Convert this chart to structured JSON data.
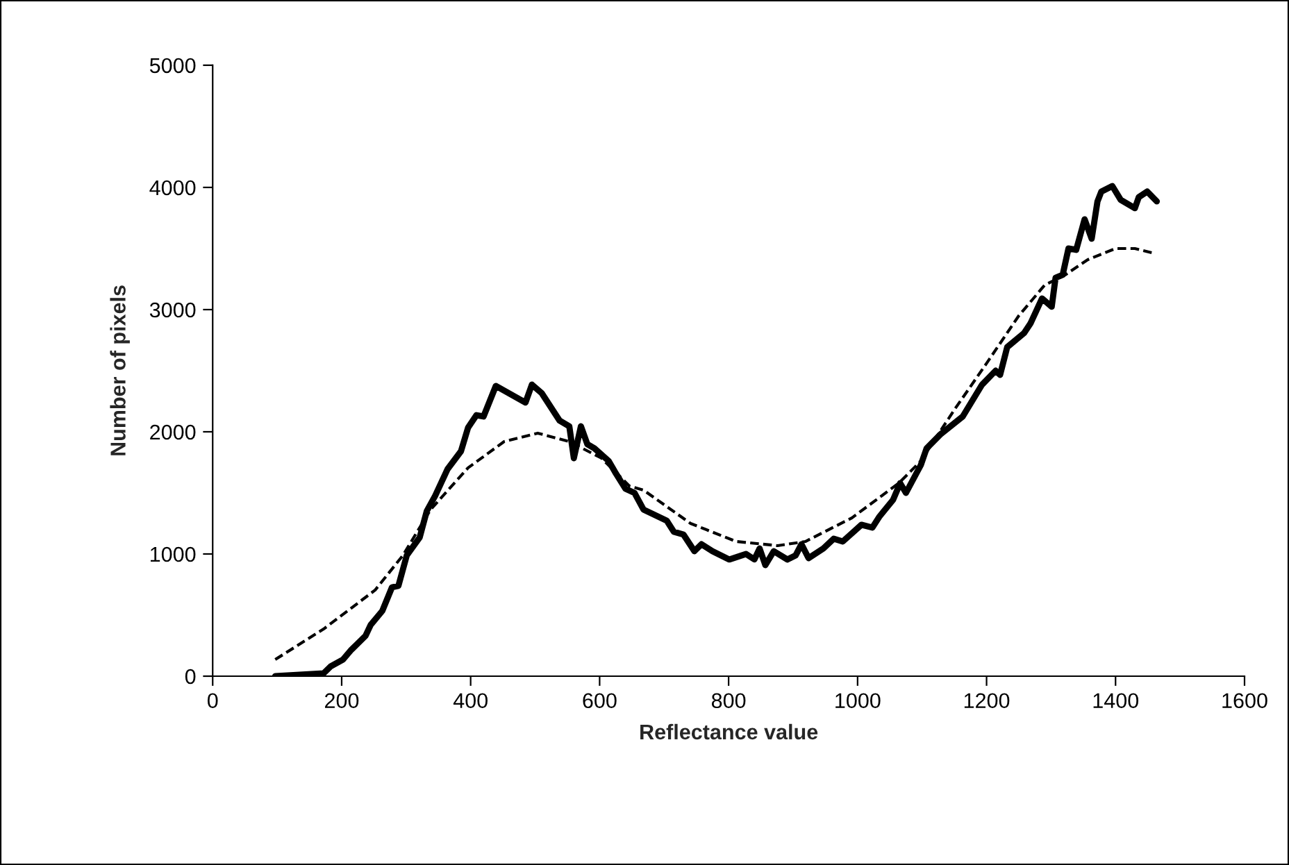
{
  "chart_data": {
    "type": "line",
    "xlabel": "Reflectance value",
    "ylabel": "Number of pixels",
    "xlim": [
      0,
      1600
    ],
    "xticks": [
      0,
      200,
      400,
      600,
      800,
      1000,
      1200,
      1400,
      1600
    ],
    "ylim": [
      0,
      5000
    ],
    "yticks": [
      0,
      1000,
      2000,
      3000,
      4000,
      5000
    ],
    "grid": false,
    "legend": false,
    "marker": "none",
    "series": [
      {
        "color": "#000000",
        "line_style": "solid",
        "x": [
          97,
          172,
          183,
          202,
          215,
          237,
          245,
          263,
          278,
          288,
          301,
          321,
          332,
          345,
          364,
          385,
          396,
          409,
          420,
          439,
          485,
          495,
          510,
          538,
          553,
          560,
          571,
          581,
          592,
          614,
          624,
          640,
          654,
          668,
          704,
          715,
          730,
          747,
          758,
          775,
          801,
          827,
          840,
          848,
          857,
          870,
          891,
          904,
          913,
          924,
          947,
          963,
          977,
          1006,
          1023,
          1034,
          1055,
          1066,
          1075,
          1098,
          1107,
          1128,
          1163,
          1193,
          1214,
          1221,
          1232,
          1258,
          1268,
          1286,
          1301,
          1307,
          1318,
          1327,
          1339,
          1352,
          1363,
          1372,
          1378,
          1395,
          1408,
          1430,
          1436,
          1449,
          1464
        ],
        "values": [
          0,
          23,
          80,
          136,
          216,
          330,
          420,
          534,
          727,
          739,
          989,
          1136,
          1352,
          1477,
          1693,
          1841,
          2034,
          2136,
          2125,
          2375,
          2239,
          2386,
          2318,
          2091,
          2045,
          1784,
          2045,
          1898,
          1864,
          1761,
          1670,
          1534,
          1500,
          1364,
          1273,
          1182,
          1159,
          1023,
          1080,
          1023,
          955,
          1000,
          955,
          1045,
          909,
          1023,
          955,
          989,
          1080,
          966,
          1045,
          1125,
          1102,
          1239,
          1216,
          1307,
          1443,
          1580,
          1500,
          1727,
          1864,
          1977,
          2125,
          2386,
          2500,
          2466,
          2693,
          2807,
          2886,
          3091,
          3023,
          3261,
          3284,
          3500,
          3489,
          3739,
          3580,
          3886,
          3966,
          4011,
          3898,
          3830,
          3920,
          3966,
          3886
        ]
      },
      {
        "color": "#000000",
        "line_style": "dashed",
        "x": [
          97,
          172,
          252,
          295,
          338,
          396,
          452,
          504,
          553,
          603,
          646,
          668,
          741,
          812,
          876,
          919,
          991,
          1064,
          1098,
          1150,
          1200,
          1250,
          1290,
          1322,
          1357,
          1400,
          1430,
          1456
        ],
        "values": [
          136,
          386,
          705,
          989,
          1364,
          1705,
          1920,
          1989,
          1920,
          1784,
          1557,
          1523,
          1250,
          1102,
          1068,
          1102,
          1295,
          1580,
          1761,
          2180,
          2560,
          2950,
          3200,
          3284,
          3409,
          3500,
          3500,
          3466
        ]
      }
    ]
  }
}
